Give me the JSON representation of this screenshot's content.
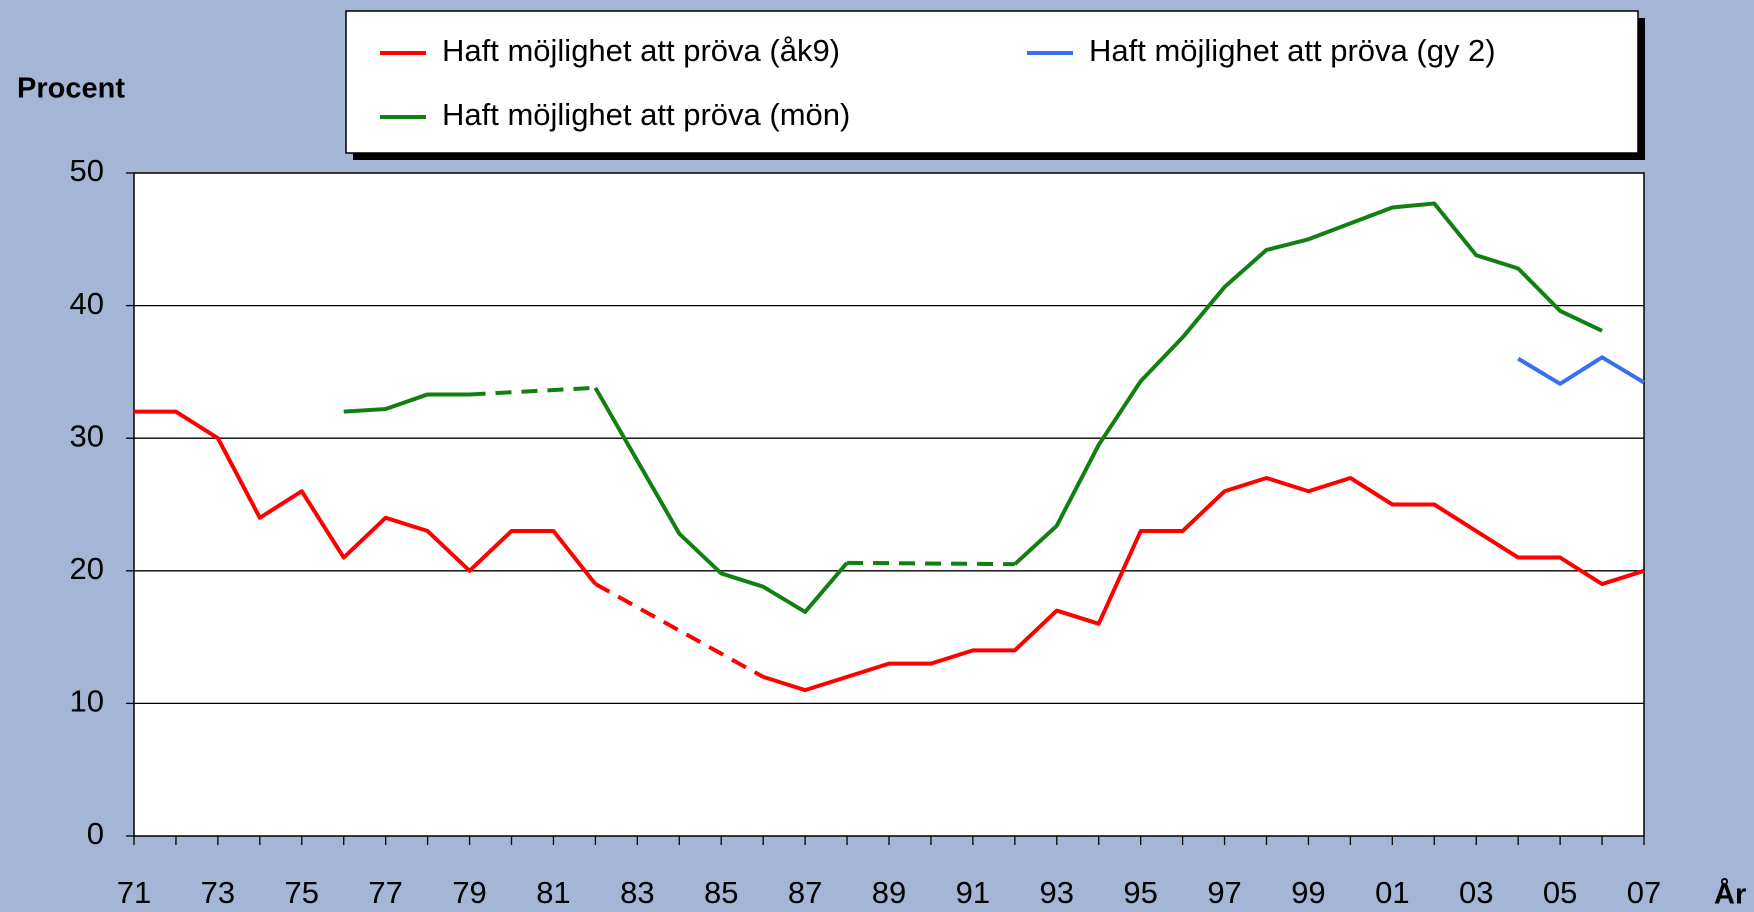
{
  "chart_data": {
    "type": "line",
    "y_label": "Procent",
    "x_label": "År",
    "categories": [
      "71",
      null,
      "73",
      null,
      "75",
      null,
      "77",
      null,
      "79",
      null,
      "81",
      null,
      "83",
      null,
      "85",
      null,
      "87",
      null,
      "89",
      null,
      "91",
      null,
      "93",
      null,
      "95",
      null,
      "97",
      null,
      "99",
      null,
      "01",
      null,
      "03",
      null,
      "05",
      null,
      "07"
    ],
    "series": [
      {
        "name": "Haft möjlighet att pröva (åk9)",
        "color": "#ff0000",
        "values": [
          32,
          32,
          30,
          24,
          26,
          21,
          24,
          23,
          20,
          23,
          23,
          19,
          null,
          null,
          null,
          12,
          11,
          12,
          13,
          13,
          14,
          14,
          17,
          16,
          23,
          23,
          26,
          27,
          26,
          27,
          25,
          25,
          23,
          21,
          21,
          19,
          20
        ]
      },
      {
        "name": "Haft möjlighet att pröva (gy 2)",
        "color": "#3a6df0",
        "values": [
          null,
          null,
          null,
          null,
          null,
          null,
          null,
          null,
          null,
          null,
          null,
          null,
          null,
          null,
          null,
          null,
          null,
          null,
          null,
          null,
          null,
          null,
          null,
          null,
          null,
          null,
          null,
          null,
          null,
          null,
          null,
          null,
          null,
          36,
          34.1,
          36.1,
          34.2
        ]
      },
      {
        "name": "Haft möjlighet att pröva (mön)",
        "color": "#118011",
        "values": [
          null,
          null,
          null,
          null,
          null,
          32,
          32.2,
          33.3,
          33.3,
          null,
          null,
          33.8,
          28.3,
          22.8,
          19.8,
          18.8,
          16.9,
          20.6,
          null,
          null,
          null,
          20.5,
          23.4,
          29.5,
          34.3,
          37.6,
          41.4,
          44.2,
          45,
          46.2,
          47.4,
          47.7,
          43.8,
          42.8,
          39.6,
          38.1,
          null
        ]
      }
    ],
    "gaps": "dashed",
    "ylim": [
      0,
      50
    ],
    "yticks": [
      0,
      10,
      20,
      30,
      40,
      50
    ],
    "grid": true
  }
}
